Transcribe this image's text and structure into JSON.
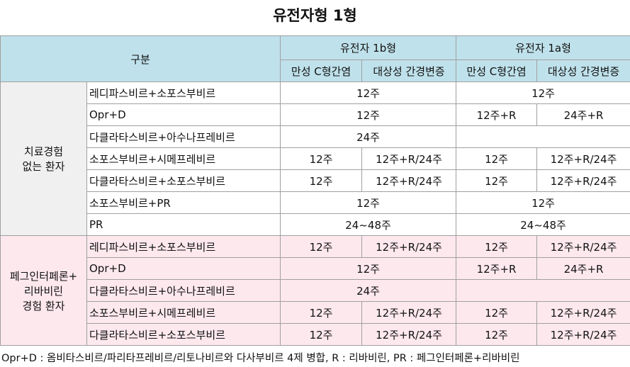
{
  "title": "유전자형 1형",
  "header": {
    "group_col": "구분",
    "genotypes": [
      "유전자 1b형",
      "유전자 1a형"
    ],
    "subcols": [
      "만성 C형간염",
      "대상성 간경변증",
      "만성 C형간염",
      "대상성 간경변증"
    ]
  },
  "groups": [
    {
      "label": [
        "치료경험",
        "없는 환자"
      ],
      "rows": [
        {
          "drug": "레디파스비르+소포스부비르",
          "cells": [
            "12주",
            null,
            "12주",
            null
          ]
        },
        {
          "drug": "Opr+D",
          "cells": [
            "12주",
            null,
            "12주+R",
            "24주+R"
          ]
        },
        {
          "drug": "다클라타스비르+아수나프레비르",
          "cells": [
            "24주",
            null,
            null,
            null
          ]
        },
        {
          "drug": "소포스부비르+시메프레비르",
          "cells": [
            "12주",
            "12주+R/24주",
            "12주",
            "12주+R/24주"
          ]
        },
        {
          "drug": "다클라타스비르+소포스부비르",
          "cells": [
            "12주",
            "12주+R/24주",
            "12주",
            "12주+R/24주"
          ]
        },
        {
          "drug": "소포스부비르+PR",
          "cells": [
            "12주",
            null,
            "12주",
            null
          ]
        },
        {
          "drug": "PR",
          "cells": [
            "24~48주",
            null,
            "24~48주",
            null
          ]
        }
      ]
    },
    {
      "label": [
        "페그인터페론+",
        "리바비린",
        "경험 환자"
      ],
      "rows": [
        {
          "drug": "레디파스비르+소포스부비르",
          "cells": [
            "12주",
            "12주+R/24주",
            "12주",
            "12주+R/24주"
          ]
        },
        {
          "drug": "Opr+D",
          "cells": [
            "12주",
            null,
            "12주+R",
            "24주+R"
          ]
        },
        {
          "drug": "다클라타스비르+아수나프레비르",
          "cells": [
            "24주",
            null,
            null,
            null
          ]
        },
        {
          "drug": "소포스부비르+시메프레비르",
          "cells": [
            "12주",
            "12주+R/24주",
            "12주",
            "12주+R/24주"
          ]
        },
        {
          "drug": "다클라타스비르+소포스부비르",
          "cells": [
            "12주",
            "12주+R/24주",
            "12주",
            "12주+R/24주"
          ]
        }
      ]
    }
  ],
  "footnote": "Opr+D : 옴비타스비르/파리타프레비르/리토나비르와 다사부비르 4제 병합, R : 리바비린, PR : 페그인터페론+리바비린"
}
